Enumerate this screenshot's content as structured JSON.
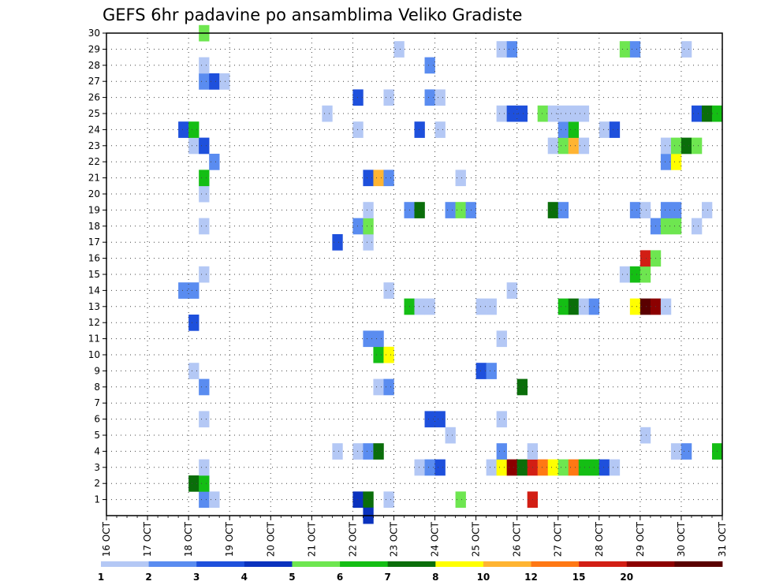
{
  "chart_data": {
    "type": "heatmap",
    "title": "GEFS 6hr padavine po ansamblima Veliko Gradiste",
    "x_labels": [
      "16 OCT",
      "17 OCT",
      "18 OCT",
      "19 OCT",
      "20 OCT",
      "21 OCT",
      "22 OCT",
      "23 OCT",
      "24 OCT",
      "25 OCT",
      "26 OCT",
      "27 OCT",
      "28 OCT",
      "29 OCT",
      "30 OCT",
      "31 OCT"
    ],
    "x_start": "16 OCT 00Z",
    "x_step_hours": 6,
    "x_range": [
      "16 OCT",
      "31 OCT"
    ],
    "y_labels": [
      "1",
      "2",
      "3",
      "4",
      "5",
      "6",
      "7",
      "8",
      "9",
      "10",
      "11",
      "12",
      "13",
      "14",
      "15",
      "16",
      "17",
      "18",
      "19",
      "20",
      "21",
      "22",
      "23",
      "24",
      "25",
      "26",
      "27",
      "28",
      "29",
      "30"
    ],
    "y_range": [
      0,
      30
    ],
    "grid": "dotted",
    "color_levels": [
      "1",
      "2",
      "3",
      "4",
      "5",
      "6",
      "7",
      "8",
      "10",
      "12",
      "15",
      "20"
    ],
    "colors": [
      "#b4c8f5",
      "#5a8cf0",
      "#1e50dc",
      "#0a32be",
      "#6ee650",
      "#14be14",
      "#0a6e0a",
      "#ffff00",
      "#ffb432",
      "#ff7814",
      "#d21e14",
      "#8c0000",
      "#5a0000"
    ],
    "cells": [
      [
        18.25,
        1,
        1
      ],
      [
        18.25,
        2,
        1
      ],
      [
        18.5,
        1,
        0
      ],
      [
        22.0,
        1,
        3
      ],
      [
        22.25,
        1,
        6
      ],
      [
        22.25,
        0,
        3
      ],
      [
        22.75,
        1,
        0
      ],
      [
        24.5,
        1,
        4
      ],
      [
        26.25,
        1,
        10
      ],
      [
        18.0,
        2,
        6
      ],
      [
        18.25,
        2,
        5
      ],
      [
        18.25,
        3,
        0
      ],
      [
        23.5,
        3,
        0
      ],
      [
        23.75,
        3,
        1
      ],
      [
        24.0,
        3,
        2
      ],
      [
        25.25,
        3,
        0
      ],
      [
        25.5,
        3,
        7
      ],
      [
        25.75,
        3,
        11
      ],
      [
        26.0,
        3,
        6
      ],
      [
        26.25,
        3,
        10
      ],
      [
        26.5,
        3,
        9
      ],
      [
        26.75,
        3,
        7
      ],
      [
        27.0,
        3,
        4
      ],
      [
        27.25,
        3,
        9
      ],
      [
        27.5,
        3,
        5
      ],
      [
        27.75,
        3,
        5
      ],
      [
        28.0,
        3,
        2
      ],
      [
        28.25,
        3,
        0
      ],
      [
        21.5,
        4,
        0
      ],
      [
        22.0,
        4,
        0
      ],
      [
        22.25,
        4,
        1
      ],
      [
        22.5,
        4,
        6
      ],
      [
        25.5,
        4,
        1
      ],
      [
        26.25,
        4,
        0
      ],
      [
        29.75,
        4,
        0
      ],
      [
        30.0,
        4,
        1
      ],
      [
        30.75,
        4,
        5
      ],
      [
        24.25,
        5,
        0
      ],
      [
        29.0,
        5,
        0
      ],
      [
        23.75,
        6,
        2
      ],
      [
        24.0,
        6,
        2
      ],
      [
        25.5,
        6,
        0
      ],
      [
        18.25,
        6,
        0
      ],
      [
        18.25,
        8,
        1
      ],
      [
        22.5,
        8,
        0
      ],
      [
        22.75,
        8,
        1
      ],
      [
        26.0,
        8,
        6
      ],
      [
        18.0,
        9,
        0
      ],
      [
        25.0,
        9,
        2
      ],
      [
        25.25,
        9,
        1
      ],
      [
        22.5,
        10,
        5
      ],
      [
        22.75,
        10,
        7
      ],
      [
        22.25,
        11,
        1
      ],
      [
        22.5,
        11,
        1
      ],
      [
        25.5,
        11,
        0
      ],
      [
        18.0,
        12,
        2
      ],
      [
        23.25,
        13,
        5
      ],
      [
        23.5,
        13,
        0
      ],
      [
        23.75,
        13,
        0
      ],
      [
        25.0,
        13,
        0
      ],
      [
        25.25,
        13,
        0
      ],
      [
        27.0,
        13,
        5
      ],
      [
        27.25,
        13,
        6
      ],
      [
        27.5,
        13,
        0
      ],
      [
        27.75,
        13,
        1
      ],
      [
        28.75,
        13,
        7
      ],
      [
        29.0,
        13,
        12
      ],
      [
        29.25,
        13,
        11
      ],
      [
        29.5,
        13,
        0
      ],
      [
        17.75,
        14,
        1
      ],
      [
        18.0,
        14,
        1
      ],
      [
        22.75,
        14,
        0
      ],
      [
        25.75,
        14,
        0
      ],
      [
        18.25,
        15,
        0
      ],
      [
        28.5,
        15,
        0
      ],
      [
        28.75,
        15,
        5
      ],
      [
        29.0,
        15,
        4
      ],
      [
        29.0,
        16,
        10
      ],
      [
        29.25,
        16,
        4
      ],
      [
        21.5,
        17,
        2
      ],
      [
        22.25,
        17,
        0
      ],
      [
        18.25,
        18,
        0
      ],
      [
        22.0,
        18,
        1
      ],
      [
        22.25,
        18,
        4
      ],
      [
        29.25,
        18,
        1
      ],
      [
        29.5,
        18,
        4
      ],
      [
        29.75,
        18,
        4
      ],
      [
        30.25,
        18,
        0
      ],
      [
        22.25,
        19,
        0
      ],
      [
        23.25,
        19,
        1
      ],
      [
        23.5,
        19,
        6
      ],
      [
        24.25,
        19,
        1
      ],
      [
        24.5,
        19,
        4
      ],
      [
        24.75,
        19,
        1
      ],
      [
        26.75,
        19,
        6
      ],
      [
        27.0,
        19,
        1
      ],
      [
        28.75,
        19,
        1
      ],
      [
        29.0,
        19,
        0
      ],
      [
        29.5,
        19,
        1
      ],
      [
        29.75,
        19,
        1
      ],
      [
        30.5,
        19,
        0
      ],
      [
        18.25,
        20,
        0
      ],
      [
        18.25,
        21,
        5
      ],
      [
        22.25,
        21,
        2
      ],
      [
        22.5,
        21,
        8
      ],
      [
        22.75,
        21,
        1
      ],
      [
        24.5,
        21,
        0
      ],
      [
        18.5,
        22,
        1
      ],
      [
        29.5,
        22,
        1
      ],
      [
        29.75,
        22,
        7
      ],
      [
        18.0,
        23,
        0
      ],
      [
        18.25,
        23,
        2
      ],
      [
        26.75,
        23,
        0
      ],
      [
        27.0,
        23,
        4
      ],
      [
        27.25,
        23,
        8
      ],
      [
        27.5,
        23,
        0
      ],
      [
        29.5,
        23,
        0
      ],
      [
        29.75,
        23,
        4
      ],
      [
        30.0,
        23,
        6
      ],
      [
        30.25,
        23,
        4
      ],
      [
        17.75,
        24,
        2
      ],
      [
        18.0,
        24,
        5
      ],
      [
        22.0,
        24,
        0
      ],
      [
        23.5,
        24,
        2
      ],
      [
        24.0,
        24,
        0
      ],
      [
        27.0,
        24,
        1
      ],
      [
        27.25,
        24,
        5
      ],
      [
        28.0,
        24,
        0
      ],
      [
        28.25,
        24,
        2
      ],
      [
        21.25,
        25,
        0
      ],
      [
        25.5,
        25,
        0
      ],
      [
        25.75,
        25,
        2
      ],
      [
        26.0,
        25,
        2
      ],
      [
        26.5,
        25,
        4
      ],
      [
        26.75,
        25,
        0
      ],
      [
        27.0,
        25,
        0
      ],
      [
        27.25,
        25,
        0
      ],
      [
        27.5,
        25,
        0
      ],
      [
        30.25,
        25,
        2
      ],
      [
        30.5,
        25,
        6
      ],
      [
        30.75,
        25,
        5
      ],
      [
        22.0,
        26,
        2
      ],
      [
        22.75,
        26,
        0
      ],
      [
        23.75,
        26,
        1
      ],
      [
        24.0,
        26,
        0
      ],
      [
        18.25,
        27,
        1
      ],
      [
        18.5,
        27,
        2
      ],
      [
        18.75,
        27,
        0
      ],
      [
        18.25,
        28,
        0
      ],
      [
        23.75,
        28,
        1
      ],
      [
        23.0,
        29,
        0
      ],
      [
        25.5,
        29,
        0
      ],
      [
        25.75,
        29,
        1
      ],
      [
        28.5,
        29,
        4
      ],
      [
        28.75,
        29,
        1
      ],
      [
        30.0,
        29,
        0
      ],
      [
        18.25,
        30,
        4
      ]
    ]
  }
}
